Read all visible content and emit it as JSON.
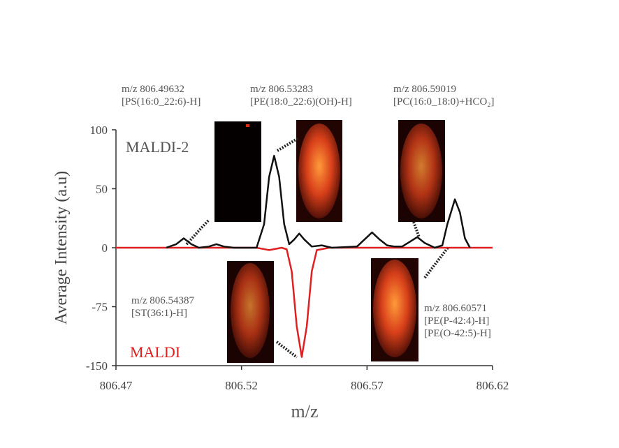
{
  "chart_data": {
    "type": "line",
    "y_label": "Average Intensity (a.u)",
    "x_label": "m/z",
    "xlim": [
      806.47,
      806.62
    ],
    "xticks": [
      806.47,
      806.52,
      806.57,
      806.62
    ],
    "ylim": [
      -150,
      100
    ],
    "yticks": [
      100,
      50,
      0,
      -75,
      -150
    ],
    "series": [
      {
        "name": "MALDI-2",
        "color": "#111111",
        "x": [
          806.49,
          806.494,
          806.497,
          806.5,
          806.503,
          806.507,
          806.51,
          806.513,
          806.517,
          806.526,
          806.529,
          806.531,
          806.533,
          806.535,
          806.537,
          806.539,
          806.541,
          806.543,
          806.545,
          806.548,
          806.552,
          806.556,
          806.566,
          806.569,
          806.572,
          806.575,
          806.578,
          806.581,
          806.584,
          806.587,
          806.59,
          806.593,
          806.597,
          806.6,
          806.602,
          806.605,
          806.607,
          806.609,
          806.611
        ],
        "values": [
          0,
          3,
          8,
          3,
          0,
          1,
          3,
          1,
          0,
          0,
          20,
          60,
          78,
          60,
          20,
          3,
          7,
          12,
          7,
          1,
          2,
          0,
          1,
          7,
          13,
          7,
          2,
          1,
          1,
          5,
          9,
          4,
          0,
          2,
          20,
          41,
          30,
          8,
          0
        ]
      },
      {
        "name": "MALDI",
        "color": "#e02020",
        "x": [
          806.47,
          806.526,
          806.531,
          806.536,
          806.538,
          806.54,
          806.542,
          806.544,
          806.546,
          806.548,
          806.55,
          806.555,
          806.62
        ],
        "values": [
          0,
          0,
          -3,
          0,
          -2,
          -30,
          -100,
          -139,
          -100,
          -30,
          -3,
          0,
          0
        ]
      }
    ],
    "annotations": [
      [
        "m/z 806.49632",
        "[PS(16:0_22:6)-H]"
      ],
      [
        "m/z 806.53283",
        "[PE(18:0_22:6)(OH)-H]"
      ],
      [
        "m/z 806.59019",
        "[PC(16:0_18:0)+HCO₂]"
      ],
      [
        "m/z 806.54387",
        "[ST(36:1)-H]"
      ],
      [
        "m/z 806.60571",
        "[PE(P-42:4)-H]",
        "[PE(O-42:5)-H]"
      ]
    ]
  }
}
